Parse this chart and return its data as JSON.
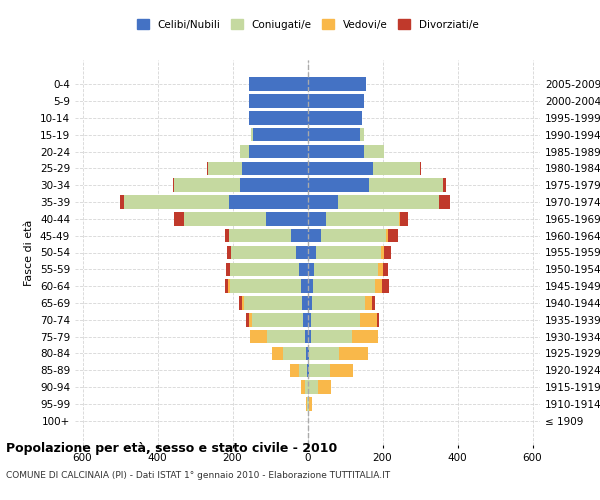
{
  "age_groups": [
    "100+",
    "95-99",
    "90-94",
    "85-89",
    "80-84",
    "75-79",
    "70-74",
    "65-69",
    "60-64",
    "55-59",
    "50-54",
    "45-49",
    "40-44",
    "35-39",
    "30-34",
    "25-29",
    "20-24",
    "15-19",
    "10-14",
    "5-9",
    "0-4"
  ],
  "birth_years": [
    "≤ 1909",
    "1910-1914",
    "1915-1919",
    "1920-1924",
    "1925-1929",
    "1930-1934",
    "1935-1939",
    "1940-1944",
    "1945-1949",
    "1950-1954",
    "1955-1959",
    "1960-1964",
    "1965-1969",
    "1970-1974",
    "1975-1979",
    "1980-1984",
    "1985-1989",
    "1990-1994",
    "1995-1999",
    "2000-2004",
    "2005-2009"
  ],
  "males": {
    "celibe": [
      0,
      0,
      0,
      2,
      5,
      8,
      12,
      15,
      18,
      22,
      30,
      45,
      110,
      210,
      180,
      175,
      155,
      145,
      155,
      155,
      155
    ],
    "coniugato": [
      0,
      2,
      8,
      20,
      60,
      100,
      135,
      155,
      190,
      185,
      175,
      165,
      220,
      280,
      175,
      90,
      25,
      5,
      0,
      0,
      0
    ],
    "vedovo": [
      0,
      2,
      10,
      25,
      30,
      45,
      10,
      5,
      5,
      0,
      0,
      0,
      0,
      0,
      0,
      0,
      0,
      0,
      0,
      0,
      0
    ],
    "divorziato": [
      0,
      0,
      0,
      0,
      0,
      0,
      8,
      8,
      8,
      10,
      10,
      10,
      25,
      10,
      5,
      2,
      0,
      0,
      0,
      0,
      0
    ]
  },
  "females": {
    "nubile": [
      0,
      0,
      2,
      5,
      5,
      8,
      10,
      12,
      15,
      18,
      22,
      35,
      50,
      80,
      165,
      175,
      150,
      140,
      145,
      150,
      155
    ],
    "coniugata": [
      0,
      5,
      25,
      55,
      80,
      110,
      130,
      140,
      165,
      170,
      175,
      175,
      195,
      270,
      195,
      125,
      55,
      10,
      0,
      0,
      0
    ],
    "vedova": [
      2,
      8,
      35,
      60,
      75,
      70,
      45,
      20,
      18,
      12,
      8,
      5,
      2,
      0,
      0,
      0,
      0,
      0,
      0,
      0,
      0
    ],
    "divorziata": [
      0,
      0,
      0,
      0,
      0,
      0,
      5,
      8,
      18,
      15,
      18,
      25,
      20,
      30,
      8,
      2,
      0,
      0,
      0,
      0,
      0
    ]
  },
  "colors": {
    "celibe": "#4472c4",
    "coniugato": "#c5d9a0",
    "vedovo": "#f9b84a",
    "divorziato": "#c0392b"
  },
  "xlim": 620,
  "title": "Popolazione per età, sesso e stato civile - 2010",
  "subtitle": "COMUNE DI CALCINAIA (PI) - Dati ISTAT 1° gennaio 2010 - Elaborazione TUTTITALIA.IT",
  "ylabel_left": "Fasce di età",
  "legend_labels": [
    "Celibi/Nubili",
    "Coniugati/e",
    "Vedovi/e",
    "Divorziati/e"
  ],
  "bg_color": "#ffffff",
  "grid_color": "#cccccc"
}
